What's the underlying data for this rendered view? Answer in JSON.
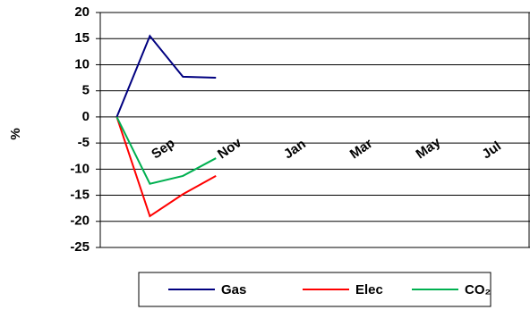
{
  "chart_data": {
    "type": "line",
    "y_label": "%",
    "categories": [
      null,
      "Sep",
      null,
      "Nov",
      null,
      "Jan",
      null,
      "Mar",
      null,
      "May",
      null,
      "Jul",
      null
    ],
    "series": [
      {
        "name": "Gas",
        "color": "#000080",
        "values": [
          0,
          15.5,
          7.7,
          7.5,
          null,
          null,
          null,
          null,
          null,
          null,
          null,
          null,
          null
        ]
      },
      {
        "name": "Elec",
        "color": "#ff0000",
        "values": [
          0,
          -19,
          -14.8,
          -11.3,
          null,
          null,
          null,
          null,
          null,
          null,
          null,
          null,
          null
        ]
      },
      {
        "name": "CO₂",
        "color": "#00b050",
        "values": [
          0,
          -12.8,
          -11.3,
          -7.9,
          null,
          null,
          null,
          null,
          null,
          null,
          null,
          null,
          null
        ]
      }
    ],
    "ylim": [
      -25,
      20
    ],
    "yticks": [
      -25,
      -20,
      -15,
      -10,
      -5,
      0,
      5,
      10,
      15,
      20
    ],
    "grid": true
  }
}
